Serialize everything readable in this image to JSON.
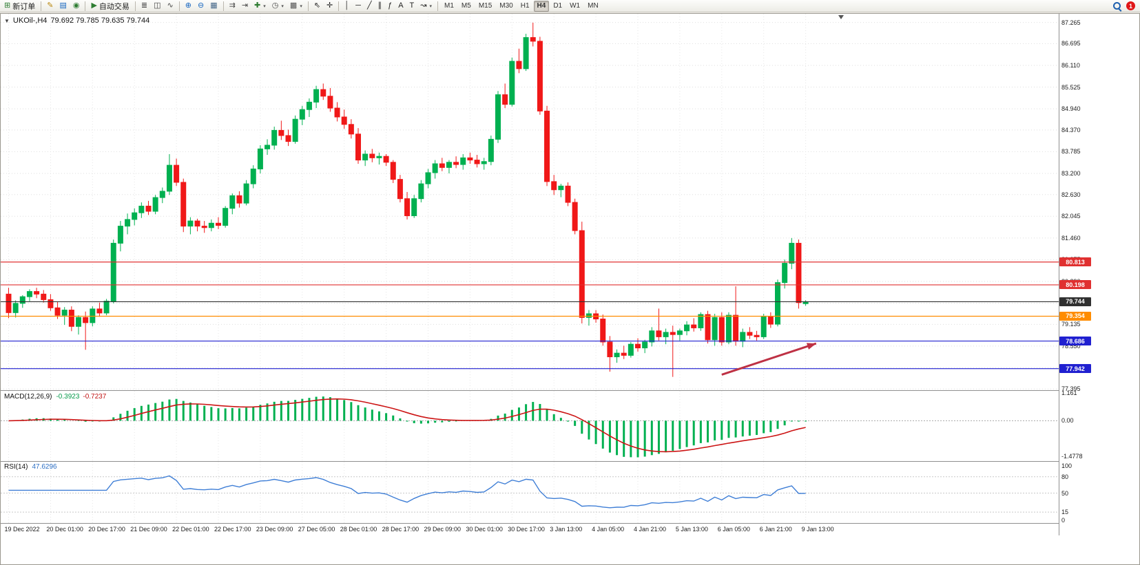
{
  "toolbar": {
    "groups": [
      {
        "items": [
          {
            "name": "new-order-button",
            "glyph": "⊞",
            "glyph_color": "#2e7d32",
            "label": "新订单"
          }
        ]
      },
      {
        "items": [
          {
            "name": "pencil-icon-button",
            "glyph": "✎",
            "glyph_color": "#b8860b"
          },
          {
            "name": "chart-window-icon-button",
            "glyph": "▤",
            "glyph_color": "#1565c0"
          },
          {
            "name": "data-feed-icon-button",
            "glyph": "◉",
            "glyph_color": "#2e7d32"
          }
        ]
      },
      {
        "items": [
          {
            "name": "auto-trading-button",
            "glyph": "▶",
            "glyph_color": "#2e7d32",
            "label": "自动交易"
          }
        ]
      },
      {
        "items": [
          {
            "name": "bar-chart-icon-button",
            "glyph": "≣",
            "glyph_color": "#444444"
          },
          {
            "name": "candlestick-chart-icon-button",
            "glyph": "◫",
            "glyph_color": "#444444"
          },
          {
            "name": "line-chart-icon-button",
            "glyph": "∿",
            "glyph_color": "#444444"
          }
        ]
      },
      {
        "items": [
          {
            "name": "zoom-in-button",
            "glyph": "⊕",
            "glyph_color": "#1565c0"
          },
          {
            "name": "zoom-out-button",
            "glyph": "⊖",
            "glyph_color": "#1565c0"
          },
          {
            "name": "tile-windows-button",
            "glyph": "▦",
            "glyph_color": "#446688"
          }
        ]
      },
      {
        "items": [
          {
            "name": "auto-scroll-button",
            "glyph": "⇉",
            "glyph_color": "#444444"
          },
          {
            "name": "chart-shift-button",
            "glyph": "⇥",
            "glyph_color": "#444444"
          },
          {
            "name": "indicators-button",
            "glyph": "✚",
            "glyph_color": "#2e7d32",
            "caret": true
          },
          {
            "name": "periods-button",
            "glyph": "◷",
            "glyph_color": "#444444",
            "caret": true
          },
          {
            "name": "templates-button",
            "glyph": "▩",
            "glyph_color": "#555555",
            "caret": true
          }
        ]
      },
      {
        "items": [
          {
            "name": "cursor-button",
            "glyph": "⇖",
            "glyph_color": "#222222"
          },
          {
            "name": "crosshair-button",
            "glyph": "✛",
            "glyph_color": "#222222"
          }
        ]
      },
      {
        "items": [
          {
            "name": "vertical-line-button",
            "glyph": "│",
            "glyph_color": "#222222"
          },
          {
            "name": "horizontal-line-button",
            "glyph": "─",
            "glyph_color": "#222222"
          },
          {
            "name": "trendline-button",
            "glyph": "╱",
            "glyph_color": "#222222"
          },
          {
            "name": "equidistant-channel-button",
            "glyph": "∥",
            "glyph_color": "#222222"
          },
          {
            "name": "fibonacci-button",
            "glyph": "ƒ",
            "glyph_color": "#222222"
          },
          {
            "name": "text-button",
            "glyph": "A",
            "glyph_color": "#222222"
          },
          {
            "name": "text-label-button",
            "glyph": "T",
            "glyph_color": "#222222"
          },
          {
            "name": "arrows-button",
            "glyph": "↝",
            "glyph_color": "#222222",
            "caret": true
          }
        ]
      }
    ],
    "timeframes": {
      "items": [
        "M1",
        "M5",
        "M15",
        "M30",
        "H1",
        "H4",
        "D1",
        "W1",
        "MN"
      ],
      "active": "H4"
    },
    "right": {
      "search_icon": "magnifier",
      "alert_count": "1"
    }
  },
  "chart_data": {
    "type": "candlestick",
    "symbol_period": "UKOil-,H4",
    "quote_ohlc": "79.692 79.785 79.635 79.744",
    "ylim": [
      77.38,
      87.5
    ],
    "price_ticks": [
      87.265,
      86.695,
      86.11,
      85.525,
      84.94,
      84.37,
      83.785,
      83.2,
      82.63,
      82.045,
      81.46,
      80.875,
      80.29,
      79.705,
      79.135,
      78.55,
      77.965,
      77.395
    ],
    "colors": {
      "up": "#00B050",
      "down": "#F01818",
      "grid": "#DEDEDE",
      "vgrid": "#E6E6E6",
      "macd_hist": "#00B050",
      "macd_signal": "#CC1414",
      "rsi_line": "#3E7ED6",
      "arrow": "#BE3144",
      "hline_red": "#E03030",
      "hline_orange": "#FF8C00",
      "hline_blue": "#2020D0",
      "hline_black": "#303030"
    },
    "candles": [
      [
        79.95,
        80.12,
        79.3,
        79.45
      ],
      [
        79.45,
        79.78,
        79.32,
        79.7
      ],
      [
        79.7,
        79.92,
        79.58,
        79.88
      ],
      [
        79.88,
        80.08,
        79.76,
        80.02
      ],
      [
        80.02,
        80.12,
        79.84,
        79.95
      ],
      [
        79.95,
        80.06,
        79.72,
        79.8
      ],
      [
        79.8,
        79.95,
        79.5,
        79.58
      ],
      [
        79.58,
        79.74,
        79.28,
        79.38
      ],
      [
        79.38,
        79.6,
        79.12,
        79.52
      ],
      [
        79.52,
        79.62,
        78.95,
        79.08
      ],
      [
        79.08,
        79.38,
        78.86,
        79.32
      ],
      [
        79.32,
        79.48,
        78.45,
        79.18
      ],
      [
        79.18,
        79.62,
        79.08,
        79.55
      ],
      [
        79.55,
        79.72,
        79.34,
        79.44
      ],
      [
        79.44,
        79.82,
        79.38,
        79.76
      ],
      [
        79.76,
        81.42,
        79.7,
        81.32
      ],
      [
        81.32,
        81.92,
        81.1,
        81.78
      ],
      [
        81.78,
        82.12,
        81.56,
        81.96
      ],
      [
        81.96,
        82.26,
        81.8,
        82.14
      ],
      [
        82.14,
        82.42,
        82.0,
        82.32
      ],
      [
        82.32,
        82.46,
        82.08,
        82.18
      ],
      [
        82.18,
        82.62,
        82.1,
        82.55
      ],
      [
        82.55,
        82.82,
        82.4,
        82.72
      ],
      [
        82.72,
        83.72,
        82.62,
        83.42
      ],
      [
        83.42,
        83.6,
        82.86,
        82.96
      ],
      [
        82.96,
        83.06,
        81.62,
        81.78
      ],
      [
        81.78,
        82.02,
        81.56,
        81.92
      ],
      [
        81.92,
        81.98,
        81.64,
        81.78
      ],
      [
        81.78,
        81.92,
        81.6,
        81.74
      ],
      [
        81.74,
        81.96,
        81.64,
        81.86
      ],
      [
        81.86,
        82.02,
        81.7,
        81.8
      ],
      [
        81.8,
        82.32,
        81.74,
        82.26
      ],
      [
        82.26,
        82.66,
        82.1,
        82.6
      ],
      [
        82.6,
        82.72,
        82.28,
        82.4
      ],
      [
        82.4,
        83.02,
        82.34,
        82.92
      ],
      [
        82.92,
        83.42,
        82.8,
        83.32
      ],
      [
        83.32,
        83.96,
        83.2,
        83.86
      ],
      [
        83.86,
        84.12,
        83.7,
        83.96
      ],
      [
        83.96,
        84.46,
        83.84,
        84.36
      ],
      [
        84.36,
        84.62,
        84.1,
        84.22
      ],
      [
        84.22,
        84.38,
        83.94,
        84.06
      ],
      [
        84.06,
        84.76,
        84.0,
        84.66
      ],
      [
        84.66,
        85.02,
        84.5,
        84.92
      ],
      [
        84.92,
        85.22,
        84.72,
        85.12
      ],
      [
        85.12,
        85.56,
        84.96,
        85.46
      ],
      [
        85.46,
        85.62,
        85.18,
        85.28
      ],
      [
        85.28,
        85.5,
        84.86,
        84.96
      ],
      [
        84.96,
        85.12,
        84.6,
        84.72
      ],
      [
        84.72,
        84.92,
        84.4,
        84.52
      ],
      [
        84.52,
        84.66,
        84.14,
        84.26
      ],
      [
        84.26,
        84.42,
        83.46,
        83.56
      ],
      [
        83.56,
        83.82,
        83.4,
        83.72
      ],
      [
        83.72,
        83.86,
        83.5,
        83.62
      ],
      [
        83.62,
        83.76,
        83.44,
        83.66
      ],
      [
        83.66,
        83.72,
        83.4,
        83.5
      ],
      [
        83.5,
        83.56,
        82.94,
        83.04
      ],
      [
        83.04,
        83.16,
        82.42,
        82.52
      ],
      [
        82.52,
        82.7,
        81.96,
        82.06
      ],
      [
        82.06,
        82.62,
        82.0,
        82.52
      ],
      [
        82.52,
        83.02,
        82.42,
        82.92
      ],
      [
        82.92,
        83.32,
        82.8,
        83.22
      ],
      [
        83.22,
        83.56,
        83.06,
        83.46
      ],
      [
        83.46,
        83.62,
        83.26,
        83.36
      ],
      [
        83.36,
        83.56,
        83.2,
        83.5
      ],
      [
        83.5,
        83.66,
        83.34,
        83.44
      ],
      [
        83.44,
        83.72,
        83.3,
        83.62
      ],
      [
        83.62,
        83.76,
        83.46,
        83.56
      ],
      [
        83.56,
        83.7,
        83.36,
        83.46
      ],
      [
        83.46,
        83.62,
        83.3,
        83.52
      ],
      [
        83.52,
        84.22,
        83.42,
        84.12
      ],
      [
        84.12,
        85.42,
        84.02,
        85.32
      ],
      [
        85.32,
        85.62,
        84.96,
        85.06
      ],
      [
        85.06,
        86.32,
        85.0,
        86.22
      ],
      [
        86.22,
        86.56,
        85.9,
        86.02
      ],
      [
        86.02,
        86.96,
        85.96,
        86.86
      ],
      [
        86.86,
        87.26,
        86.62,
        86.76
      ],
      [
        86.76,
        86.88,
        84.78,
        84.88
      ],
      [
        84.88,
        85.02,
        82.86,
        82.98
      ],
      [
        82.98,
        83.16,
        82.62,
        82.76
      ],
      [
        82.76,
        82.92,
        82.56,
        82.86
      ],
      [
        82.86,
        82.96,
        82.32,
        82.42
      ],
      [
        82.42,
        82.52,
        81.56,
        81.66
      ],
      [
        81.66,
        81.9,
        79.16,
        79.32
      ],
      [
        79.32,
        79.52,
        79.1,
        79.42
      ],
      [
        79.42,
        79.52,
        79.18,
        79.28
      ],
      [
        79.28,
        79.4,
        78.56,
        78.66
      ],
      [
        78.66,
        78.82,
        77.86,
        78.26
      ],
      [
        78.26,
        78.46,
        78.1,
        78.36
      ],
      [
        78.36,
        78.56,
        78.2,
        78.3
      ],
      [
        78.3,
        78.66,
        78.24,
        78.6
      ],
      [
        78.6,
        78.76,
        78.4,
        78.5
      ],
      [
        78.5,
        78.72,
        78.36,
        78.66
      ],
      [
        78.66,
        79.06,
        78.54,
        78.96
      ],
      [
        78.96,
        79.56,
        78.7,
        78.8
      ],
      [
        78.8,
        79.02,
        78.6,
        78.92
      ],
      [
        78.92,
        79.1,
        77.72,
        78.86
      ],
      [
        78.86,
        79.02,
        78.7,
        78.96
      ],
      [
        78.96,
        79.22,
        78.84,
        79.12
      ],
      [
        79.12,
        79.3,
        78.94,
        79.04
      ],
      [
        79.04,
        79.46,
        78.96,
        79.4
      ],
      [
        79.4,
        79.5,
        78.62,
        78.72
      ],
      [
        78.72,
        79.42,
        78.56,
        79.32
      ],
      [
        79.32,
        79.46,
        78.56,
        78.66
      ],
      [
        78.66,
        79.46,
        78.6,
        79.38
      ],
      [
        79.38,
        80.16,
        78.56,
        78.68
      ],
      [
        78.68,
        79.02,
        78.52,
        78.92
      ],
      [
        78.92,
        79.06,
        78.74,
        78.84
      ],
      [
        78.84,
        78.96,
        78.7,
        78.8
      ],
      [
        78.8,
        79.42,
        78.74,
        79.34
      ],
      [
        79.34,
        79.46,
        79.04,
        79.14
      ],
      [
        79.14,
        80.34,
        79.08,
        80.26
      ],
      [
        80.26,
        80.88,
        80.1,
        80.78
      ],
      [
        80.78,
        81.46,
        80.62,
        81.32
      ],
      [
        81.32,
        81.42,
        79.56,
        79.72
      ],
      [
        79.692,
        79.785,
        79.635,
        79.744
      ]
    ],
    "x_labels": [
      {
        "idx": 0,
        "text": "19 Dec 2022"
      },
      {
        "idx": 6,
        "text": "20 Dec 01:00"
      },
      {
        "idx": 12,
        "text": "20 Dec 17:00"
      },
      {
        "idx": 18,
        "text": "21 Dec 09:00"
      },
      {
        "idx": 24,
        "text": "22 Dec 01:00"
      },
      {
        "idx": 30,
        "text": "22 Dec 17:00"
      },
      {
        "idx": 36,
        "text": "23 Dec 09:00"
      },
      {
        "idx": 42,
        "text": "27 Dec 05:00"
      },
      {
        "idx": 48,
        "text": "28 Dec 01:00"
      },
      {
        "idx": 54,
        "text": "28 Dec 17:00"
      },
      {
        "idx": 60,
        "text": "29 Dec 09:00"
      },
      {
        "idx": 66,
        "text": "30 Dec 01:00"
      },
      {
        "idx": 72,
        "text": "30 Dec 17:00"
      },
      {
        "idx": 78,
        "text": "3 Jan 13:00"
      },
      {
        "idx": 84,
        "text": "4 Jan 05:00"
      },
      {
        "idx": 90,
        "text": "4 Jan 21:00"
      },
      {
        "idx": 96,
        "text": "5 Jan 13:00"
      },
      {
        "idx": 102,
        "text": "6 Jan 05:00"
      },
      {
        "idx": 108,
        "text": "6 Jan 21:00"
      },
      {
        "idx": 114,
        "text": "9 Jan 13:00"
      }
    ],
    "hlines": [
      {
        "name": "resistance-line-1",
        "price": 80.813,
        "color": "#E03030",
        "label": "80.813"
      },
      {
        "name": "resistance-line-2",
        "price": 80.198,
        "color": "#E03030",
        "label": "80.198"
      },
      {
        "name": "current-price-line",
        "price": 79.744,
        "color": "#303030",
        "label": "79.744"
      },
      {
        "name": "orange-level-line",
        "price": 79.354,
        "color": "#FF8C00",
        "label": "79.354"
      },
      {
        "name": "support-line-1",
        "price": 78.686,
        "color": "#2020D0",
        "label": "78.686"
      },
      {
        "name": "support-line-2",
        "price": 77.942,
        "color": "#2020D0",
        "label": "77.942"
      }
    ],
    "arrow_annotation": {
      "x1_idx": 102,
      "y1_price": 77.78,
      "x2_idx": 115.5,
      "y2_price": 78.62
    },
    "macd": {
      "name": "MACD(12,26,9)",
      "value": "-0.3923",
      "signal_value": "-0.7237",
      "ticks": [
        {
          "v": 1.161,
          "text": "1.161"
        },
        {
          "v": 0,
          "text": "0.00"
        },
        {
          "v": -1.4778,
          "text": "-1.4778"
        }
      ],
      "ylim": [
        -1.69,
        1.25
      ],
      "fast": 12,
      "slow": 26,
      "signal": 9
    },
    "rsi": {
      "name": "RSI(14)",
      "value": "47.6296",
      "period": 14,
      "ticks": [
        {
          "v": 100,
          "text": "100"
        },
        {
          "v": 80,
          "text": "80"
        },
        {
          "v": 50,
          "text": "50"
        },
        {
          "v": 15,
          "text": "15"
        },
        {
          "v": 0,
          "text": "0"
        }
      ],
      "levels": [
        80,
        50,
        15
      ]
    }
  }
}
